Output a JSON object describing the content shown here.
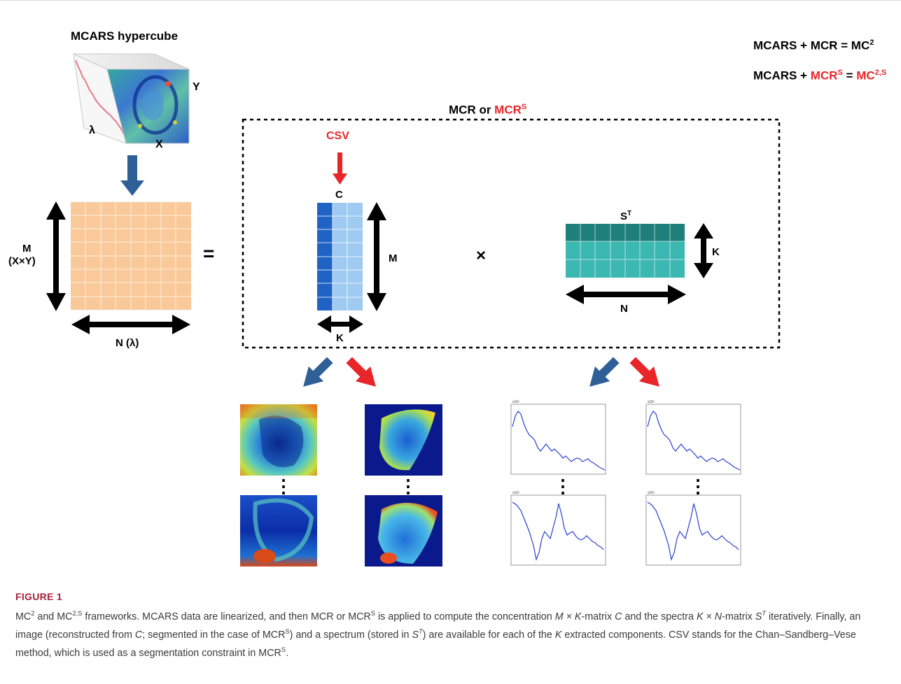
{
  "figure": {
    "hypercube_title": "MCARS hypercube",
    "axis_y": "Y",
    "axis_x": "X",
    "axis_lambda": "λ",
    "matrix_m_label_line1": "M",
    "matrix_m_label_line2": "(X×Y)",
    "matrix_n_label": "N (λ)",
    "equals_sign": "=",
    "mcr_box_title": "MCR or ",
    "mcr_box_title_red": "MCR",
    "mcr_box_title_red_sup": "S",
    "csv_label": "CSV",
    "c_label": "C",
    "c_m_label": "M",
    "c_k_label": "K",
    "times_sign": "×",
    "st_label": "S",
    "st_label_sup": "T",
    "st_k_label": "K",
    "st_n_label": "N",
    "legend_line1_prefix": "MCARS + MCR = MC",
    "legend_line1_sup": "2",
    "legend_line2_prefix": "MCARS + ",
    "legend_line2_red": "MCR",
    "legend_line2_red_sup": "S",
    "legend_line2_eq": " = ",
    "legend_line2_red2": "MC",
    "legend_line2_red2_sup": "2,S",
    "ellipsis": "⋮"
  },
  "colors": {
    "blue_arrow": "#2e5f96",
    "red_arrow": "#e8262a",
    "matrix_fill": "#fac99a",
    "c_dark": "#1f63c4",
    "c_light": "#9fcaf2",
    "st_dark": "#1f7f7b",
    "st_light": "#3cb8b2",
    "caption_label": "#a6213c"
  },
  "caption": {
    "label": "FIGURE 1",
    "p1": "MC",
    "p1_sup": "2",
    "p2": " and MC",
    "p2_sup": "2,S",
    "p3": " frameworks. MCARS data are linearized, and then MCR or MCR",
    "p3_sup": "S",
    "p4": " is applied to compute the concentration ",
    "p4_i": "M × K",
    "p5": "-matrix ",
    "p5_i": "C",
    "p6": " and the spectra ",
    "p6_i": "K × N",
    "p7": "-matrix ",
    "p7_i": "S",
    "p7_sup": "T",
    "p8": " iteratively. Finally, an image (reconstructed from ",
    "p8_i": "C",
    "p9": "; segmented in the case of MCR",
    "p9_sup": "S",
    "p10": ") and a spectrum (stored in ",
    "p10_i": "S",
    "p10_sup": "T",
    "p11": ") are available for each of the ",
    "p11_i": "K",
    "p12": " extracted components. CSV stands for the Chan–Sandberg–Vese method, which is used as a segmentation constraint in MCR",
    "p12_sup": "S",
    "p13": "."
  }
}
